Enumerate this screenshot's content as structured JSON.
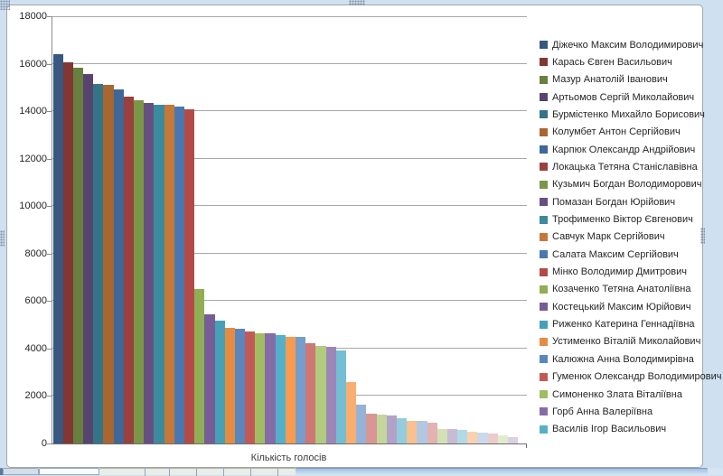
{
  "chart_data": {
    "type": "bar",
    "title": "",
    "xlabel": "Кількість голосів",
    "ylabel": "",
    "ylim": [
      0,
      18000
    ],
    "yticks": [
      0,
      2000,
      4000,
      6000,
      8000,
      10000,
      12000,
      14000,
      16000,
      18000
    ],
    "grid": true,
    "legend_position": "right",
    "values": [
      16400,
      16050,
      15850,
      15550,
      15150,
      15100,
      14900,
      14600,
      14450,
      14350,
      14280,
      14260,
      14180,
      14080,
      6520,
      5450,
      5160,
      4880,
      4820,
      4720,
      4660,
      4650,
      4560,
      4510,
      4490,
      4240,
      4110,
      4060,
      3930,
      2570,
      1620,
      1270,
      1230,
      1190,
      1060,
      950,
      940,
      860,
      610,
      600,
      560,
      490,
      440,
      430,
      340,
      280
    ],
    "palette": {
      "base": [
        "#4F81BD",
        "#C0504D",
        "#9BBB59",
        "#8064A2",
        "#4BACC6",
        "#F79646"
      ],
      "stages": [
        {
          "shade": 0.68
        },
        {
          "shade": 0.8
        },
        {
          "shade": 0.93
        },
        {
          "tint": 0.05
        },
        {
          "tint": 0.22
        },
        {
          "tint": 0.4
        },
        {
          "tint": 0.56
        },
        {
          "tint": 0.7
        }
      ]
    }
  },
  "legend": {
    "names": [
      "Діжечко Максим Володимирович",
      "Карась Євген Васильович",
      "Мазур Анатолій Іванович",
      "Артьомов Сергій Миколайович",
      "Бурмістенко Михайло Борисович",
      "Колумбет Антон Сергійович",
      "Карпюк Олександр Андрійович",
      "Локацька Тетяна Станіславівна",
      "Кузьмич Богдан Володиморович",
      "Помазан Богдан Юрійович",
      "Трофименко Віктор Євгенович",
      "Савчук Марк Сергійович",
      "Салата Максим Сергійович",
      "Мінко Володимир Дмитрович",
      "Козаченко Тетяна Анатоліївна",
      "Костецький Максим Юрійович",
      "Риженко Катерина Геннадіївна",
      "Устименко Віталій Миколайович",
      "Калюжна Анна Володимирівна",
      "Гуменюк Олександр Володимирович",
      "Симоненко Злата Віталіївна",
      "Горб Анна Валеріївна",
      "Василів Ігор Васильович"
    ]
  },
  "window": {
    "background_color": "#CFE0F0",
    "chart_border_color": "#A6A6A6",
    "gridline_color": "#A8A8A8"
  }
}
